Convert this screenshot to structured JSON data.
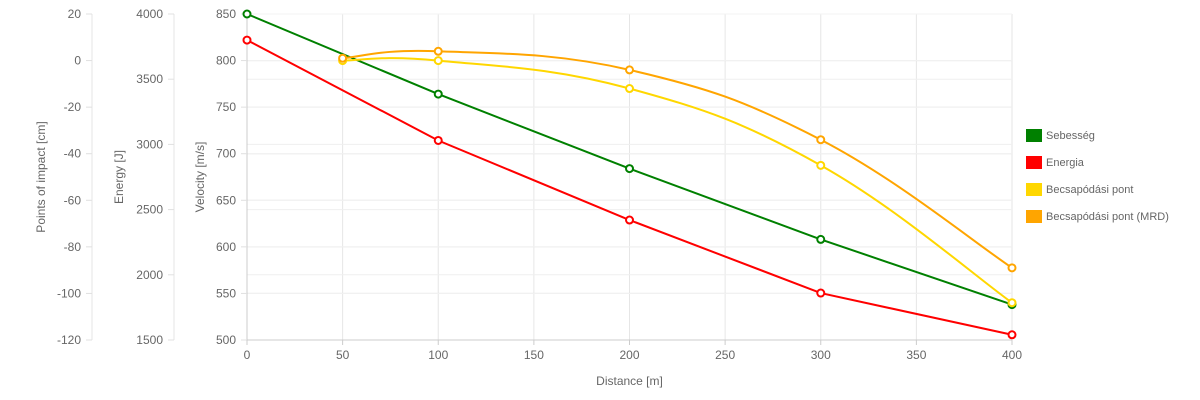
{
  "chart_data": {
    "type": "line",
    "xlabel": "Distance [m]",
    "x_ticks": [
      0,
      50,
      100,
      150,
      200,
      250,
      300,
      350,
      400
    ],
    "xlim": [
      0,
      400
    ],
    "axes": {
      "velocity": {
        "label": "Velocity [m/s]",
        "range": [
          500,
          850
        ],
        "ticks": [
          500,
          550,
          600,
          650,
          700,
          750,
          800,
          850
        ]
      },
      "energy": {
        "label": "Energy [J]",
        "range": [
          1500,
          4000
        ],
        "ticks": [
          1500,
          2000,
          2500,
          3000,
          3500,
          4000
        ]
      },
      "impact": {
        "label": "Points of impact [cm]",
        "range": [
          -120,
          20
        ],
        "ticks": [
          -120,
          -100,
          -80,
          -60,
          -40,
          -20,
          0,
          20
        ]
      }
    },
    "legend_position": "right",
    "grid": true,
    "series": [
      {
        "name": "Sebesség",
        "axis": "velocity",
        "color": "#008000",
        "curve": "linear",
        "x": [
          0,
          100,
          200,
          300,
          400
        ],
        "values": [
          850,
          764,
          684,
          608,
          538
        ]
      },
      {
        "name": "Energia",
        "axis": "energy",
        "color": "#ff0000",
        "curve": "linear",
        "x": [
          0,
          100,
          200,
          300,
          400
        ],
        "values": [
          3800,
          3030,
          2420,
          1860,
          1540
        ]
      },
      {
        "name": "Becsapódási pont",
        "axis": "impact",
        "color": "#ffd700",
        "curve": "smooth",
        "x": [
          50,
          100,
          200,
          300,
          400
        ],
        "values": [
          0,
          0,
          -12,
          -45,
          -104
        ]
      },
      {
        "name": "Becsapódási pont (MRD)",
        "axis": "impact",
        "color": "#ffa500",
        "curve": "smooth",
        "x": [
          50,
          100,
          200,
          300,
          400
        ],
        "values": [
          1,
          4,
          -4,
          -34,
          -89
        ]
      }
    ]
  }
}
